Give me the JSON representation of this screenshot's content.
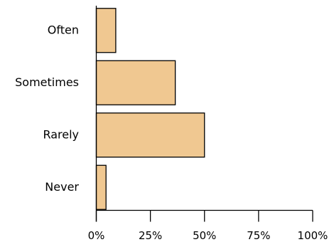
{
  "chart_data": {
    "type": "bar",
    "orientation": "horizontal",
    "title": "",
    "xlabel": "",
    "ylabel": "",
    "categories": [
      "Often",
      "Sometimes",
      "Rarely",
      "Never"
    ],
    "values": [
      9,
      36.5,
      50,
      4.5
    ],
    "xlim": [
      0,
      100
    ],
    "x_ticks": [
      0,
      25,
      50,
      75,
      100
    ],
    "x_tick_labels": [
      "0%",
      "25%",
      "50%",
      "75%",
      "100%"
    ],
    "grid": false,
    "legend": "none",
    "bar_color": "#f0c891",
    "bar_edge_color": "#000000"
  }
}
